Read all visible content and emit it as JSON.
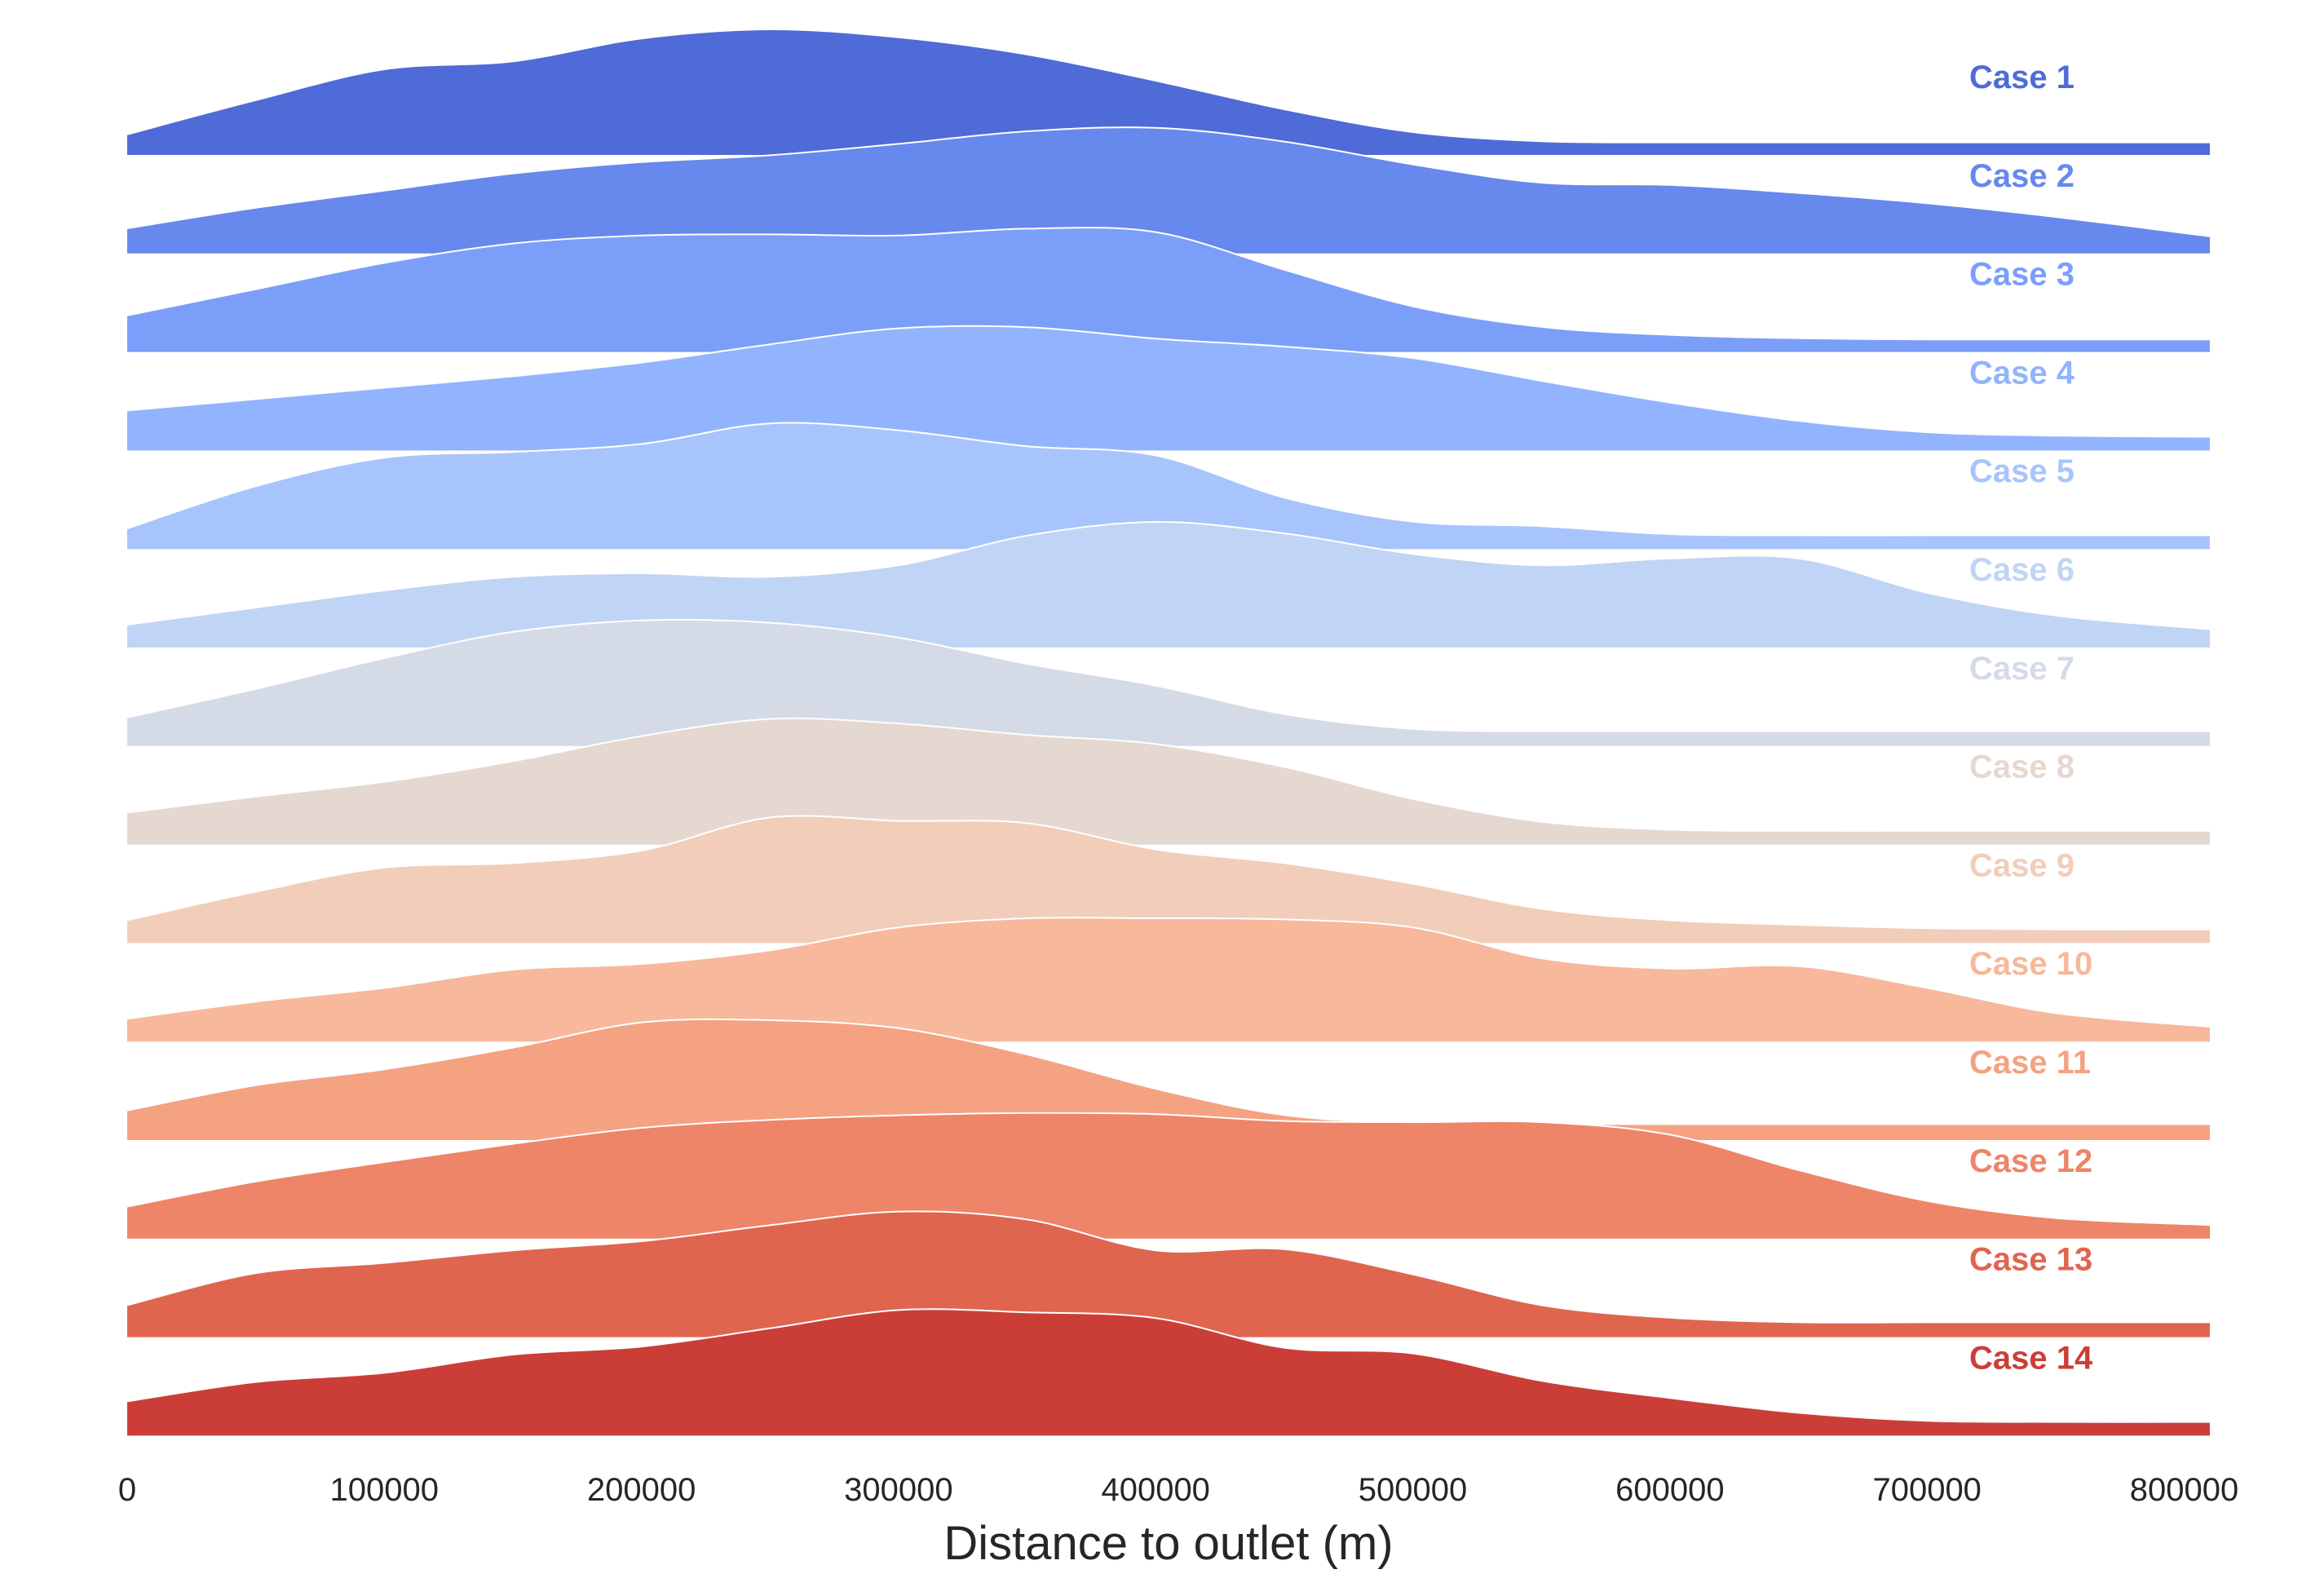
{
  "chart_data": {
    "type": "area",
    "subtype": "ridgeline",
    "xlabel": "Distance to outlet (m)",
    "xlim": [
      0,
      810000
    ],
    "xticks": [
      0,
      100000,
      200000,
      300000,
      400000,
      500000,
      600000,
      700000,
      800000
    ],
    "x": [
      0,
      50000,
      100000,
      150000,
      200000,
      250000,
      300000,
      350000,
      400000,
      450000,
      500000,
      550000,
      600000,
      650000,
      700000,
      750000,
      810000
    ],
    "y_units": "relative density (peak = 1)",
    "series": [
      {
        "name": "Case 1",
        "color": "#4f6bd8",
        "values": [
          0.08,
          0.38,
          0.65,
          0.72,
          0.92,
          1.0,
          0.93,
          0.78,
          0.55,
          0.3,
          0.1,
          0.02,
          0.01,
          0.01,
          0.01,
          0.01,
          0.01
        ]
      },
      {
        "name": "Case 2",
        "color": "#6788ec",
        "values": [
          0.12,
          0.3,
          0.45,
          0.6,
          0.7,
          0.76,
          0.86,
          0.97,
          1.0,
          0.88,
          0.68,
          0.52,
          0.5,
          0.43,
          0.34,
          0.22,
          0.05
        ]
      },
      {
        "name": "Case 3",
        "color": "#7b9ff9",
        "values": [
          0.22,
          0.45,
          0.68,
          0.85,
          0.92,
          0.93,
          0.92,
          0.98,
          0.95,
          0.62,
          0.3,
          0.12,
          0.05,
          0.02,
          0.01,
          0.01,
          0.01
        ]
      },
      {
        "name": "Case 4",
        "color": "#92b4fe",
        "values": [
          0.25,
          0.35,
          0.45,
          0.55,
          0.67,
          0.83,
          0.97,
          0.98,
          0.88,
          0.81,
          0.71,
          0.51,
          0.32,
          0.16,
          0.06,
          0.03,
          0.02
        ]
      },
      {
        "name": "Case 5",
        "color": "#a8c4fd",
        "values": [
          0.08,
          0.45,
          0.7,
          0.75,
          0.82,
          1.0,
          0.94,
          0.8,
          0.72,
          0.35,
          0.14,
          0.1,
          0.03,
          0.02,
          0.02,
          0.02,
          0.02
        ]
      },
      {
        "name": "Case 6",
        "color": "#c0d4f5",
        "values": [
          0.1,
          0.25,
          0.4,
          0.52,
          0.55,
          0.52,
          0.62,
          0.88,
          1.0,
          0.9,
          0.72,
          0.62,
          0.68,
          0.68,
          0.38,
          0.18,
          0.06
        ]
      },
      {
        "name": "Case 7",
        "color": "#d4dbe6",
        "values": [
          0.15,
          0.4,
          0.67,
          0.9,
          1.0,
          0.98,
          0.85,
          0.62,
          0.43,
          0.18,
          0.05,
          0.03,
          0.03,
          0.03,
          0.03,
          0.03,
          0.03
        ]
      },
      {
        "name": "Case 8",
        "color": "#e5d8d1",
        "values": [
          0.18,
          0.32,
          0.45,
          0.63,
          0.85,
          1.0,
          0.96,
          0.86,
          0.78,
          0.58,
          0.3,
          0.1,
          0.03,
          0.02,
          0.02,
          0.02,
          0.02
        ]
      },
      {
        "name": "Case 9",
        "color": "#f1cdba",
        "values": [
          0.1,
          0.35,
          0.56,
          0.6,
          0.71,
          1.0,
          0.97,
          0.95,
          0.72,
          0.6,
          0.42,
          0.2,
          0.1,
          0.06,
          0.03,
          0.02,
          0.02
        ]
      },
      {
        "name": "Case 10",
        "color": "#f7b89c",
        "values": [
          0.1,
          0.25,
          0.37,
          0.53,
          0.58,
          0.7,
          0.9,
          0.98,
          0.98,
          0.97,
          0.9,
          0.63,
          0.54,
          0.56,
          0.37,
          0.15,
          0.03
        ]
      },
      {
        "name": "Case 11",
        "color": "#f4a282",
        "values": [
          0.16,
          0.38,
          0.52,
          0.71,
          0.93,
          0.95,
          0.88,
          0.65,
          0.35,
          0.12,
          0.05,
          0.04,
          0.04,
          0.04,
          0.04,
          0.04,
          0.04
        ]
      },
      {
        "name": "Case 12",
        "color": "#ee8468",
        "values": [
          0.18,
          0.4,
          0.57,
          0.73,
          0.87,
          0.94,
          0.98,
          1.0,
          0.99,
          0.93,
          0.92,
          0.92,
          0.81,
          0.5,
          0.23,
          0.08,
          0.02
        ]
      },
      {
        "name": "Case 13",
        "color": "#e0654f",
        "values": [
          0.18,
          0.46,
          0.55,
          0.66,
          0.74,
          0.88,
          1.0,
          0.93,
          0.66,
          0.67,
          0.45,
          0.18,
          0.07,
          0.03,
          0.03,
          0.03,
          0.03
        ]
      },
      {
        "name": "Case 14",
        "color": "#cb3e38",
        "values": [
          0.2,
          0.37,
          0.45,
          0.61,
          0.68,
          0.84,
          1.0,
          0.98,
          0.93,
          0.67,
          0.62,
          0.38,
          0.23,
          0.1,
          0.03,
          0.02,
          0.02
        ]
      }
    ],
    "grid": false,
    "legend": "none",
    "labels_placement": "right of each ridge"
  }
}
